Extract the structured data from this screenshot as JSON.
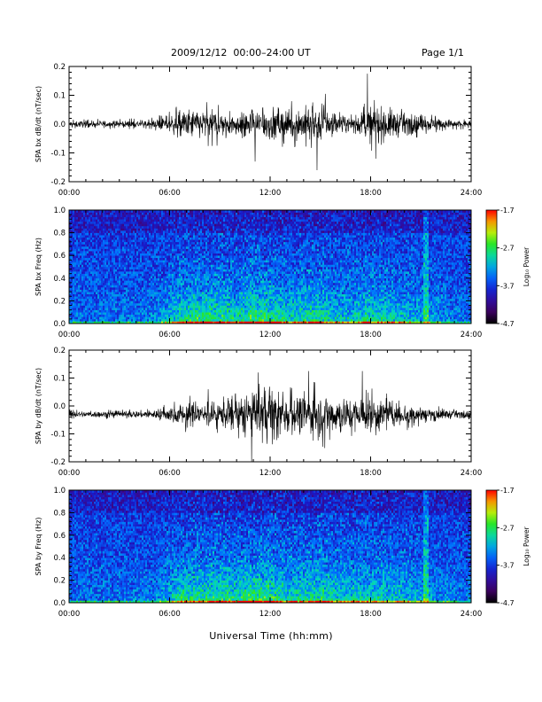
{
  "header": {
    "title": "2009/12/12  00:00–24:00 UT",
    "page": "Page 1/1"
  },
  "x_axis_title": "Universal Time (hh:mm)",
  "chart_data": [
    {
      "type": "line",
      "id": "bx-dbdt",
      "ylabel": "SPA bx dB/dt (nT/sec)",
      "xlim": [
        0,
        24
      ],
      "ylim": [
        -0.2,
        0.2
      ],
      "x_ticks": [
        "00:00",
        "06:00",
        "12:00",
        "18:00",
        "24:00"
      ],
      "y_ticks": [
        "-0.2",
        "-0.1",
        "0.0",
        "0.1",
        "0.2"
      ],
      "baseline": 0.0,
      "activity_envelope": [
        [
          0,
          0.012
        ],
        [
          3,
          0.012
        ],
        [
          5,
          0.015
        ],
        [
          6,
          0.03
        ],
        [
          7,
          0.055
        ],
        [
          9,
          0.05
        ],
        [
          10,
          0.035
        ],
        [
          11,
          0.05
        ],
        [
          12,
          0.06
        ],
        [
          13,
          0.05
        ],
        [
          14,
          0.065
        ],
        [
          15,
          0.06
        ],
        [
          16,
          0.03
        ],
        [
          17,
          0.025
        ],
        [
          18,
          0.065
        ],
        [
          19,
          0.06
        ],
        [
          20,
          0.04
        ],
        [
          21,
          0.03
        ],
        [
          23,
          0.015
        ],
        [
          24,
          0.01
        ]
      ],
      "peaks": [
        [
          6.4,
          0.06
        ],
        [
          11.1,
          -0.13
        ],
        [
          14.8,
          -0.16
        ],
        [
          15.3,
          0.105
        ],
        [
          17.8,
          0.175
        ],
        [
          18.3,
          -0.12
        ]
      ]
    },
    {
      "type": "heatmap",
      "id": "bx-spectrogram",
      "ylabel": "SPA bx Freq (Hz)",
      "xlim": [
        0,
        24
      ],
      "ylim": [
        0,
        1.0
      ],
      "x_ticks": [
        "00:00",
        "06:00",
        "12:00",
        "18:00",
        "24:00"
      ],
      "y_ticks": [
        "0.0",
        "0.2",
        "0.4",
        "0.6",
        "0.8",
        "1.0"
      ],
      "colorbar": {
        "label": "Log₁₀ Power",
        "ticks": [
          "-1.7",
          "-2.7",
          "-3.7",
          "-4.7"
        ],
        "range": [
          -4.7,
          -1.7
        ]
      },
      "activity_envelope": [
        [
          0,
          0.1
        ],
        [
          5,
          0.15
        ],
        [
          6,
          0.4
        ],
        [
          7,
          0.7
        ],
        [
          9,
          0.7
        ],
        [
          10,
          0.6
        ],
        [
          11,
          0.75
        ],
        [
          12,
          0.7
        ],
        [
          13,
          0.55
        ],
        [
          14,
          0.6
        ],
        [
          15,
          0.65
        ],
        [
          16,
          0.45
        ],
        [
          17,
          0.5
        ],
        [
          18,
          0.6
        ],
        [
          19,
          0.55
        ],
        [
          20,
          0.45
        ],
        [
          21,
          0.35
        ],
        [
          23,
          0.15
        ],
        [
          24,
          0.1
        ]
      ],
      "bright_lines": [
        21.3
      ]
    },
    {
      "type": "line",
      "id": "by-dbdt",
      "ylabel": "SPA by dB/dt (nT/sec)",
      "xlim": [
        0,
        24
      ],
      "ylim": [
        -0.2,
        0.2
      ],
      "x_ticks": [
        "00:00",
        "06:00",
        "12:00",
        "18:00",
        "24:00"
      ],
      "y_ticks": [
        "-0.2",
        "-0.1",
        "0.0",
        "0.1",
        "0.2"
      ],
      "baseline": -0.03,
      "activity_envelope": [
        [
          0,
          0.012
        ],
        [
          3,
          0.012
        ],
        [
          5,
          0.015
        ],
        [
          6,
          0.03
        ],
        [
          7,
          0.045
        ],
        [
          9,
          0.045
        ],
        [
          10,
          0.06
        ],
        [
          11,
          0.08
        ],
        [
          12,
          0.085
        ],
        [
          13,
          0.075
        ],
        [
          14,
          0.07
        ],
        [
          15,
          0.085
        ],
        [
          16,
          0.07
        ],
        [
          17,
          0.06
        ],
        [
          18,
          0.07
        ],
        [
          19,
          0.05
        ],
        [
          20,
          0.04
        ],
        [
          21,
          0.03
        ],
        [
          23,
          0.015
        ],
        [
          24,
          0.012
        ]
      ],
      "peaks": [
        [
          8.3,
          0.06
        ],
        [
          10.9,
          -0.2
        ],
        [
          11.3,
          0.12
        ],
        [
          14.3,
          0.125
        ],
        [
          17.5,
          0.125
        ],
        [
          18.3,
          -0.105
        ]
      ]
    },
    {
      "type": "heatmap",
      "id": "by-spectrogram",
      "ylabel": "SPA by Freq (Hz)",
      "xlim": [
        0,
        24
      ],
      "ylim": [
        0,
        1.0
      ],
      "x_ticks": [
        "00:00",
        "06:00",
        "12:00",
        "18:00",
        "24:00"
      ],
      "y_ticks": [
        "0.0",
        "0.2",
        "0.4",
        "0.6",
        "0.8",
        "1.0"
      ],
      "colorbar": {
        "label": "Log₁₀ Power",
        "ticks": [
          "-1.7",
          "-2.7",
          "-3.7",
          "-4.7"
        ],
        "range": [
          -4.7,
          -1.7
        ]
      },
      "activity_envelope": [
        [
          0,
          0.1
        ],
        [
          5,
          0.15
        ],
        [
          6,
          0.4
        ],
        [
          7,
          0.65
        ],
        [
          9,
          0.7
        ],
        [
          10,
          0.65
        ],
        [
          11,
          0.8
        ],
        [
          12,
          0.75
        ],
        [
          13,
          0.55
        ],
        [
          14,
          0.6
        ],
        [
          15,
          0.7
        ],
        [
          16,
          0.55
        ],
        [
          17,
          0.5
        ],
        [
          18,
          0.55
        ],
        [
          19,
          0.5
        ],
        [
          20,
          0.45
        ],
        [
          21,
          0.35
        ],
        [
          23,
          0.15
        ],
        [
          24,
          0.1
        ]
      ],
      "bright_lines": [
        21.3
      ]
    }
  ]
}
